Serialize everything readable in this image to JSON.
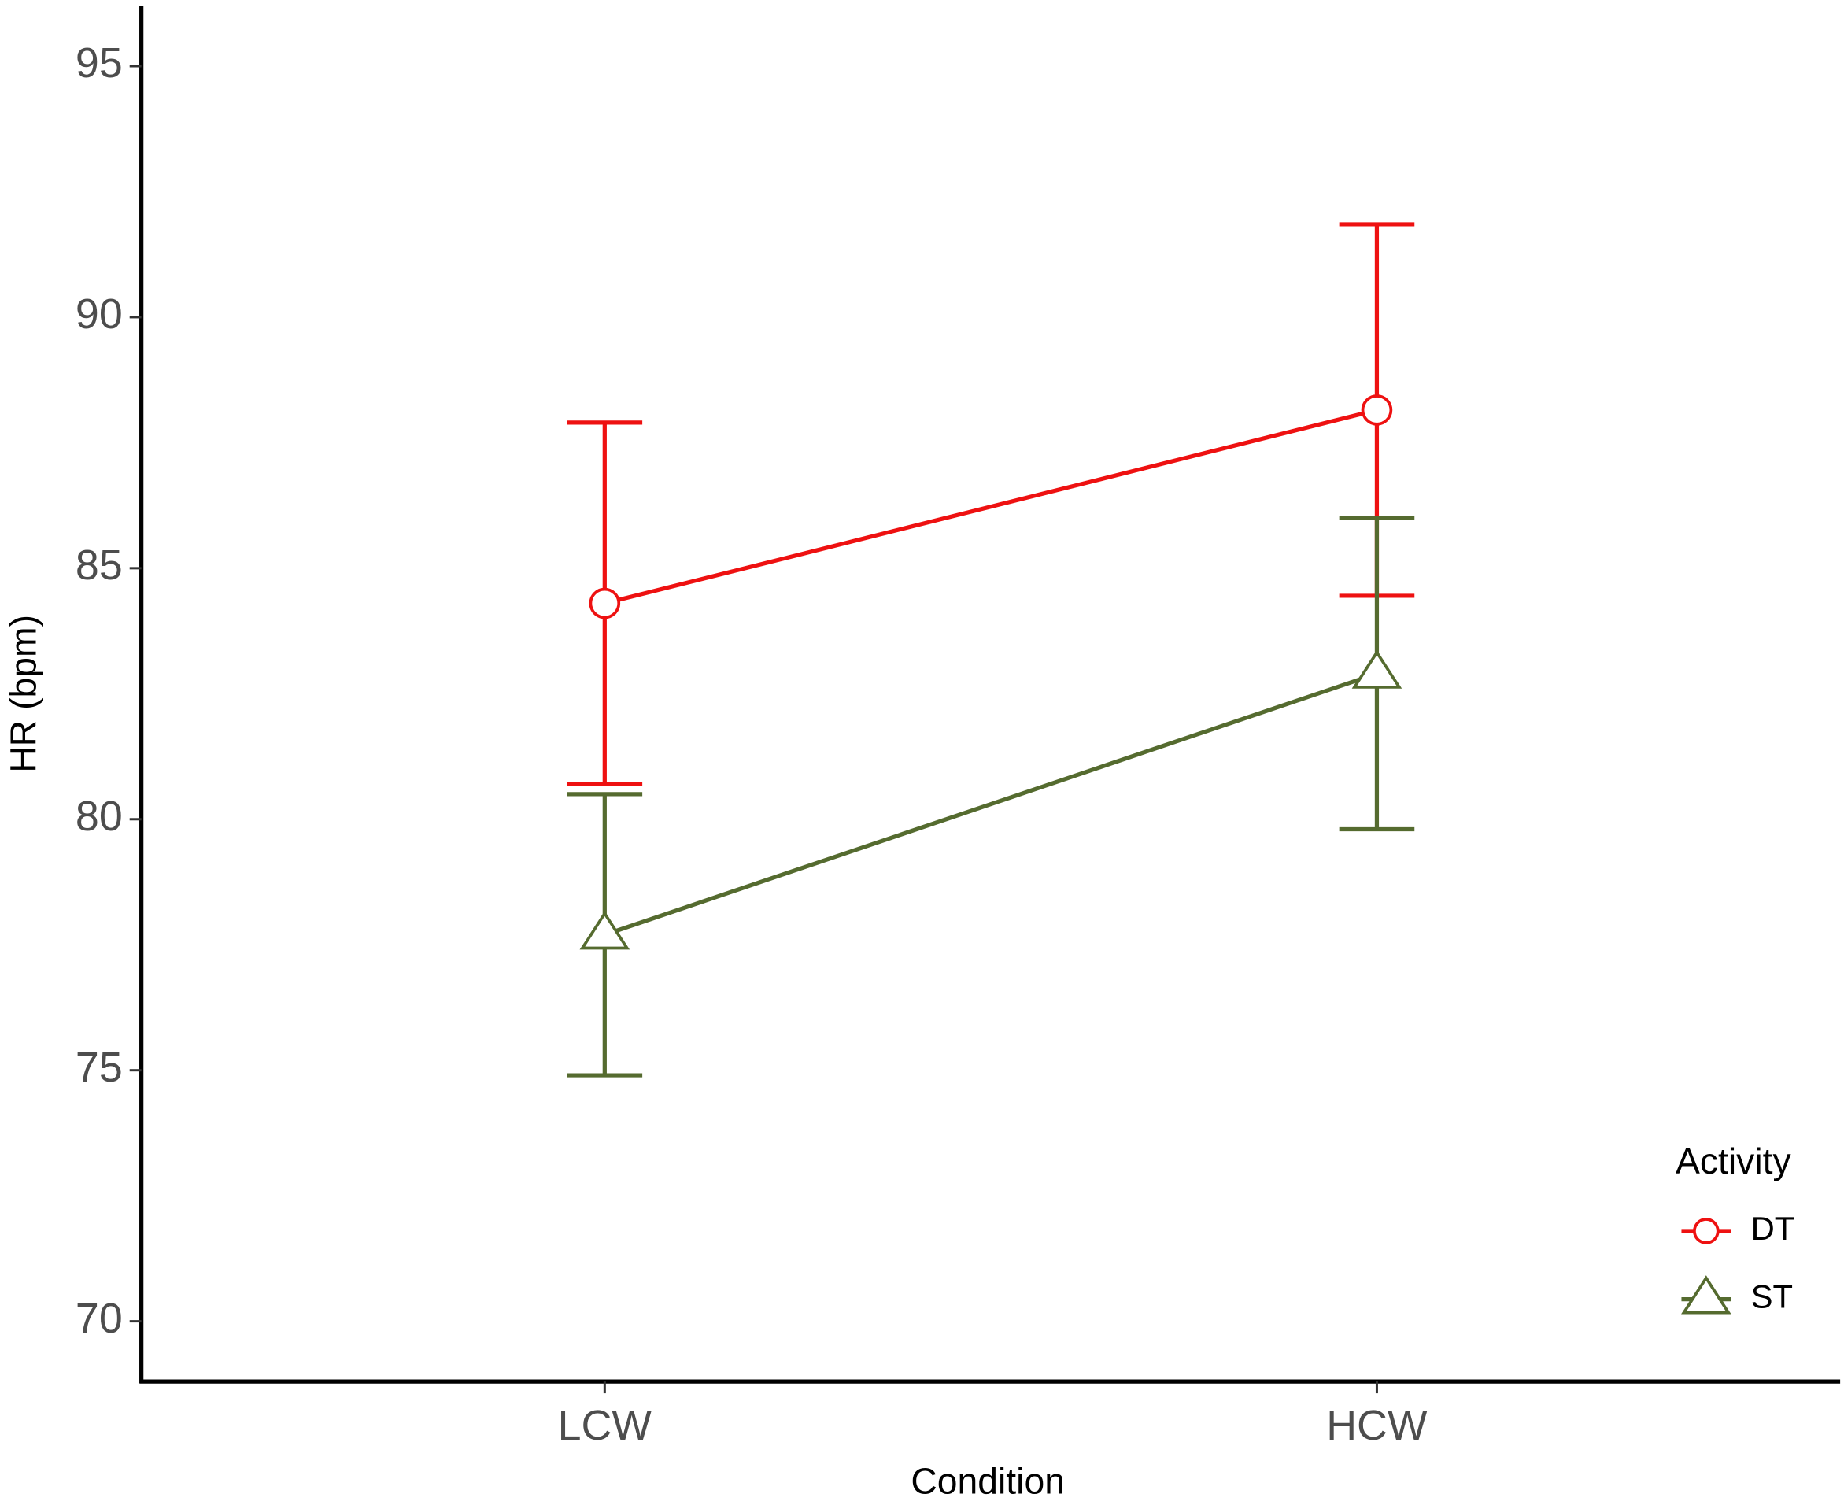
{
  "chart_data": {
    "type": "line",
    "x_label": "Condition",
    "y_label": "HR (bpm)",
    "categories": [
      "LCW",
      "HCW"
    ],
    "series": [
      {
        "name": "DT",
        "color": "#ee1111",
        "marker": "circle",
        "values": [
          84.3,
          88.15
        ],
        "errors": [
          3.6,
          3.7
        ]
      },
      {
        "name": "ST",
        "color": "#556b2f",
        "marker": "triangle",
        "values": [
          77.7,
          82.9
        ],
        "errors": [
          2.8,
          3.1
        ]
      }
    ],
    "ylim": [
      68.8,
      96.2
    ],
    "yticks": [
      70,
      75,
      80,
      85,
      90,
      95
    ],
    "legend_title": "Activity",
    "legend": "bottom-right",
    "grid": false
  }
}
